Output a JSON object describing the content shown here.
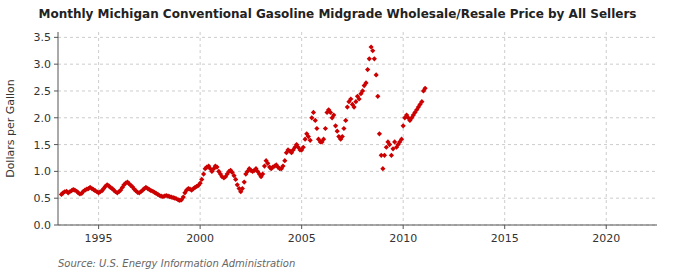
{
  "chart_data": {
    "type": "scatter",
    "title": "Monthly Michigan Conventional Gasoline Midgrade Wholesale/Resale Price by All Sellers",
    "ylabel": "Dollars per Gallon",
    "source": "Source: U.S. Energy Information Administration",
    "color": "#CC0000",
    "marker": "diamond",
    "grid": true,
    "xlim": [
      1993.0,
      2022.5
    ],
    "ylim": [
      0.0,
      3.6
    ],
    "xticks": [
      1995,
      2000,
      2005,
      2010,
      2015,
      2020
    ],
    "yticks": [
      {
        "value": 0.0,
        "label": "0.0"
      },
      0.5,
      {
        "value": 1.0,
        "label": "1.0"
      },
      1.5,
      {
        "value": 2.0,
        "label": "2.0"
      },
      2.5,
      {
        "value": 3.0,
        "label": "3.0"
      },
      3.5
    ],
    "x": [
      1993.17,
      1993.25,
      1993.33,
      1993.42,
      1993.5,
      1993.58,
      1993.67,
      1993.75,
      1993.83,
      1993.92,
      1994.0,
      1994.08,
      1994.17,
      1994.25,
      1994.33,
      1994.42,
      1994.5,
      1994.58,
      1994.67,
      1994.75,
      1994.83,
      1994.92,
      1995.0,
      1995.08,
      1995.17,
      1995.25,
      1995.33,
      1995.42,
      1995.5,
      1995.58,
      1995.67,
      1995.75,
      1995.83,
      1995.92,
      1996.0,
      1996.08,
      1996.17,
      1996.25,
      1996.33,
      1996.42,
      1996.5,
      1996.58,
      1996.67,
      1996.75,
      1996.83,
      1996.92,
      1997.0,
      1997.08,
      1997.17,
      1997.25,
      1997.33,
      1997.42,
      1997.5,
      1997.58,
      1997.67,
      1997.75,
      1997.83,
      1997.92,
      1998.0,
      1998.08,
      1998.17,
      1998.25,
      1998.33,
      1998.42,
      1998.5,
      1998.58,
      1998.67,
      1998.75,
      1998.83,
      1998.92,
      1999.0,
      1999.08,
      1999.17,
      1999.25,
      1999.33,
      1999.42,
      1999.5,
      1999.58,
      1999.67,
      1999.75,
      1999.83,
      1999.92,
      2000.0,
      2000.08,
      2000.17,
      2000.25,
      2000.33,
      2000.42,
      2000.5,
      2000.58,
      2000.67,
      2000.75,
      2000.83,
      2000.92,
      2001.0,
      2001.08,
      2001.17,
      2001.25,
      2001.33,
      2001.42,
      2001.5,
      2001.58,
      2001.67,
      2001.75,
      2001.83,
      2001.92,
      2002.0,
      2002.08,
      2002.17,
      2002.25,
      2002.33,
      2002.42,
      2002.5,
      2002.58,
      2002.67,
      2002.75,
      2002.83,
      2002.92,
      2003.0,
      2003.08,
      2003.17,
      2003.25,
      2003.33,
      2003.42,
      2003.5,
      2003.58,
      2003.67,
      2003.75,
      2003.83,
      2003.92,
      2004.0,
      2004.08,
      2004.17,
      2004.25,
      2004.33,
      2004.42,
      2004.5,
      2004.58,
      2004.67,
      2004.75,
      2004.83,
      2004.92,
      2005.0,
      2005.08,
      2005.17,
      2005.25,
      2005.33,
      2005.42,
      2005.5,
      2005.58,
      2005.67,
      2005.75,
      2005.83,
      2005.92,
      2006.0,
      2006.08,
      2006.17,
      2006.25,
      2006.33,
      2006.42,
      2006.5,
      2006.58,
      2006.67,
      2006.75,
      2006.83,
      2006.92,
      2007.0,
      2007.08,
      2007.17,
      2007.25,
      2007.33,
      2007.42,
      2007.5,
      2007.58,
      2007.67,
      2007.75,
      2007.83,
      2007.92,
      2008.0,
      2008.08,
      2008.17,
      2008.25,
      2008.33,
      2008.42,
      2008.5,
      2008.58,
      2008.67,
      2008.75,
      2008.83,
      2008.92,
      2009.0,
      2009.08,
      2009.17,
      2009.25,
      2009.33,
      2009.42,
      2009.5,
      2009.58,
      2009.67,
      2009.75,
      2009.83,
      2009.92,
      2010.0,
      2010.08,
      2010.17,
      2010.25,
      2010.33,
      2010.42,
      2010.5,
      2010.58,
      2010.67,
      2010.75,
      2010.83,
      2010.92,
      2011.0,
      2011.08
    ],
    "values": [
      0.57,
      0.6,
      0.62,
      0.63,
      0.6,
      0.62,
      0.64,
      0.66,
      0.65,
      0.63,
      0.6,
      0.58,
      0.59,
      0.63,
      0.65,
      0.67,
      0.68,
      0.7,
      0.68,
      0.66,
      0.64,
      0.62,
      0.6,
      0.62,
      0.64,
      0.68,
      0.72,
      0.75,
      0.73,
      0.7,
      0.68,
      0.65,
      0.62,
      0.6,
      0.62,
      0.65,
      0.7,
      0.75,
      0.78,
      0.8,
      0.77,
      0.74,
      0.71,
      0.67,
      0.64,
      0.61,
      0.6,
      0.62,
      0.65,
      0.68,
      0.7,
      0.68,
      0.66,
      0.64,
      0.63,
      0.61,
      0.59,
      0.57,
      0.55,
      0.54,
      0.53,
      0.54,
      0.55,
      0.54,
      0.53,
      0.52,
      0.51,
      0.5,
      0.49,
      0.47,
      0.46,
      0.47,
      0.52,
      0.6,
      0.65,
      0.68,
      0.67,
      0.65,
      0.68,
      0.7,
      0.72,
      0.74,
      0.78,
      0.85,
      0.95,
      1.05,
      1.08,
      1.1,
      1.05,
      1.0,
      1.05,
      1.1,
      1.08,
      1.0,
      0.95,
      0.9,
      0.88,
      0.9,
      0.95,
      1.0,
      1.02,
      0.98,
      0.92,
      0.85,
      0.75,
      0.68,
      0.62,
      0.68,
      0.8,
      0.95,
      1.0,
      1.05,
      1.02,
      1.0,
      1.02,
      1.05,
      1.0,
      0.95,
      0.9,
      0.95,
      1.1,
      1.2,
      1.15,
      1.08,
      1.05,
      1.08,
      1.1,
      1.12,
      1.08,
      1.05,
      1.05,
      1.1,
      1.2,
      1.35,
      1.4,
      1.38,
      1.35,
      1.4,
      1.45,
      1.5,
      1.45,
      1.4,
      1.4,
      1.45,
      1.6,
      1.7,
      1.65,
      1.58,
      2.0,
      2.1,
      1.95,
      1.8,
      1.6,
      1.55,
      1.55,
      1.6,
      1.8,
      2.1,
      2.15,
      2.1,
      2.0,
      2.05,
      1.85,
      1.75,
      1.65,
      1.6,
      1.65,
      1.8,
      1.95,
      2.2,
      2.3,
      2.35,
      2.25,
      2.2,
      2.3,
      2.4,
      2.35,
      2.45,
      2.5,
      2.6,
      2.65,
      2.9,
      3.1,
      3.32,
      3.25,
      3.1,
      2.8,
      2.4,
      1.7,
      1.3,
      1.05,
      1.3,
      1.45,
      1.55,
      1.5,
      1.3,
      1.42,
      1.55,
      1.45,
      1.5,
      1.55,
      1.6,
      1.85,
      2.0,
      2.05,
      2.0,
      1.95,
      2.0,
      2.05,
      2.1,
      2.15,
      2.2,
      2.25,
      2.3,
      2.5,
      2.55
    ]
  }
}
